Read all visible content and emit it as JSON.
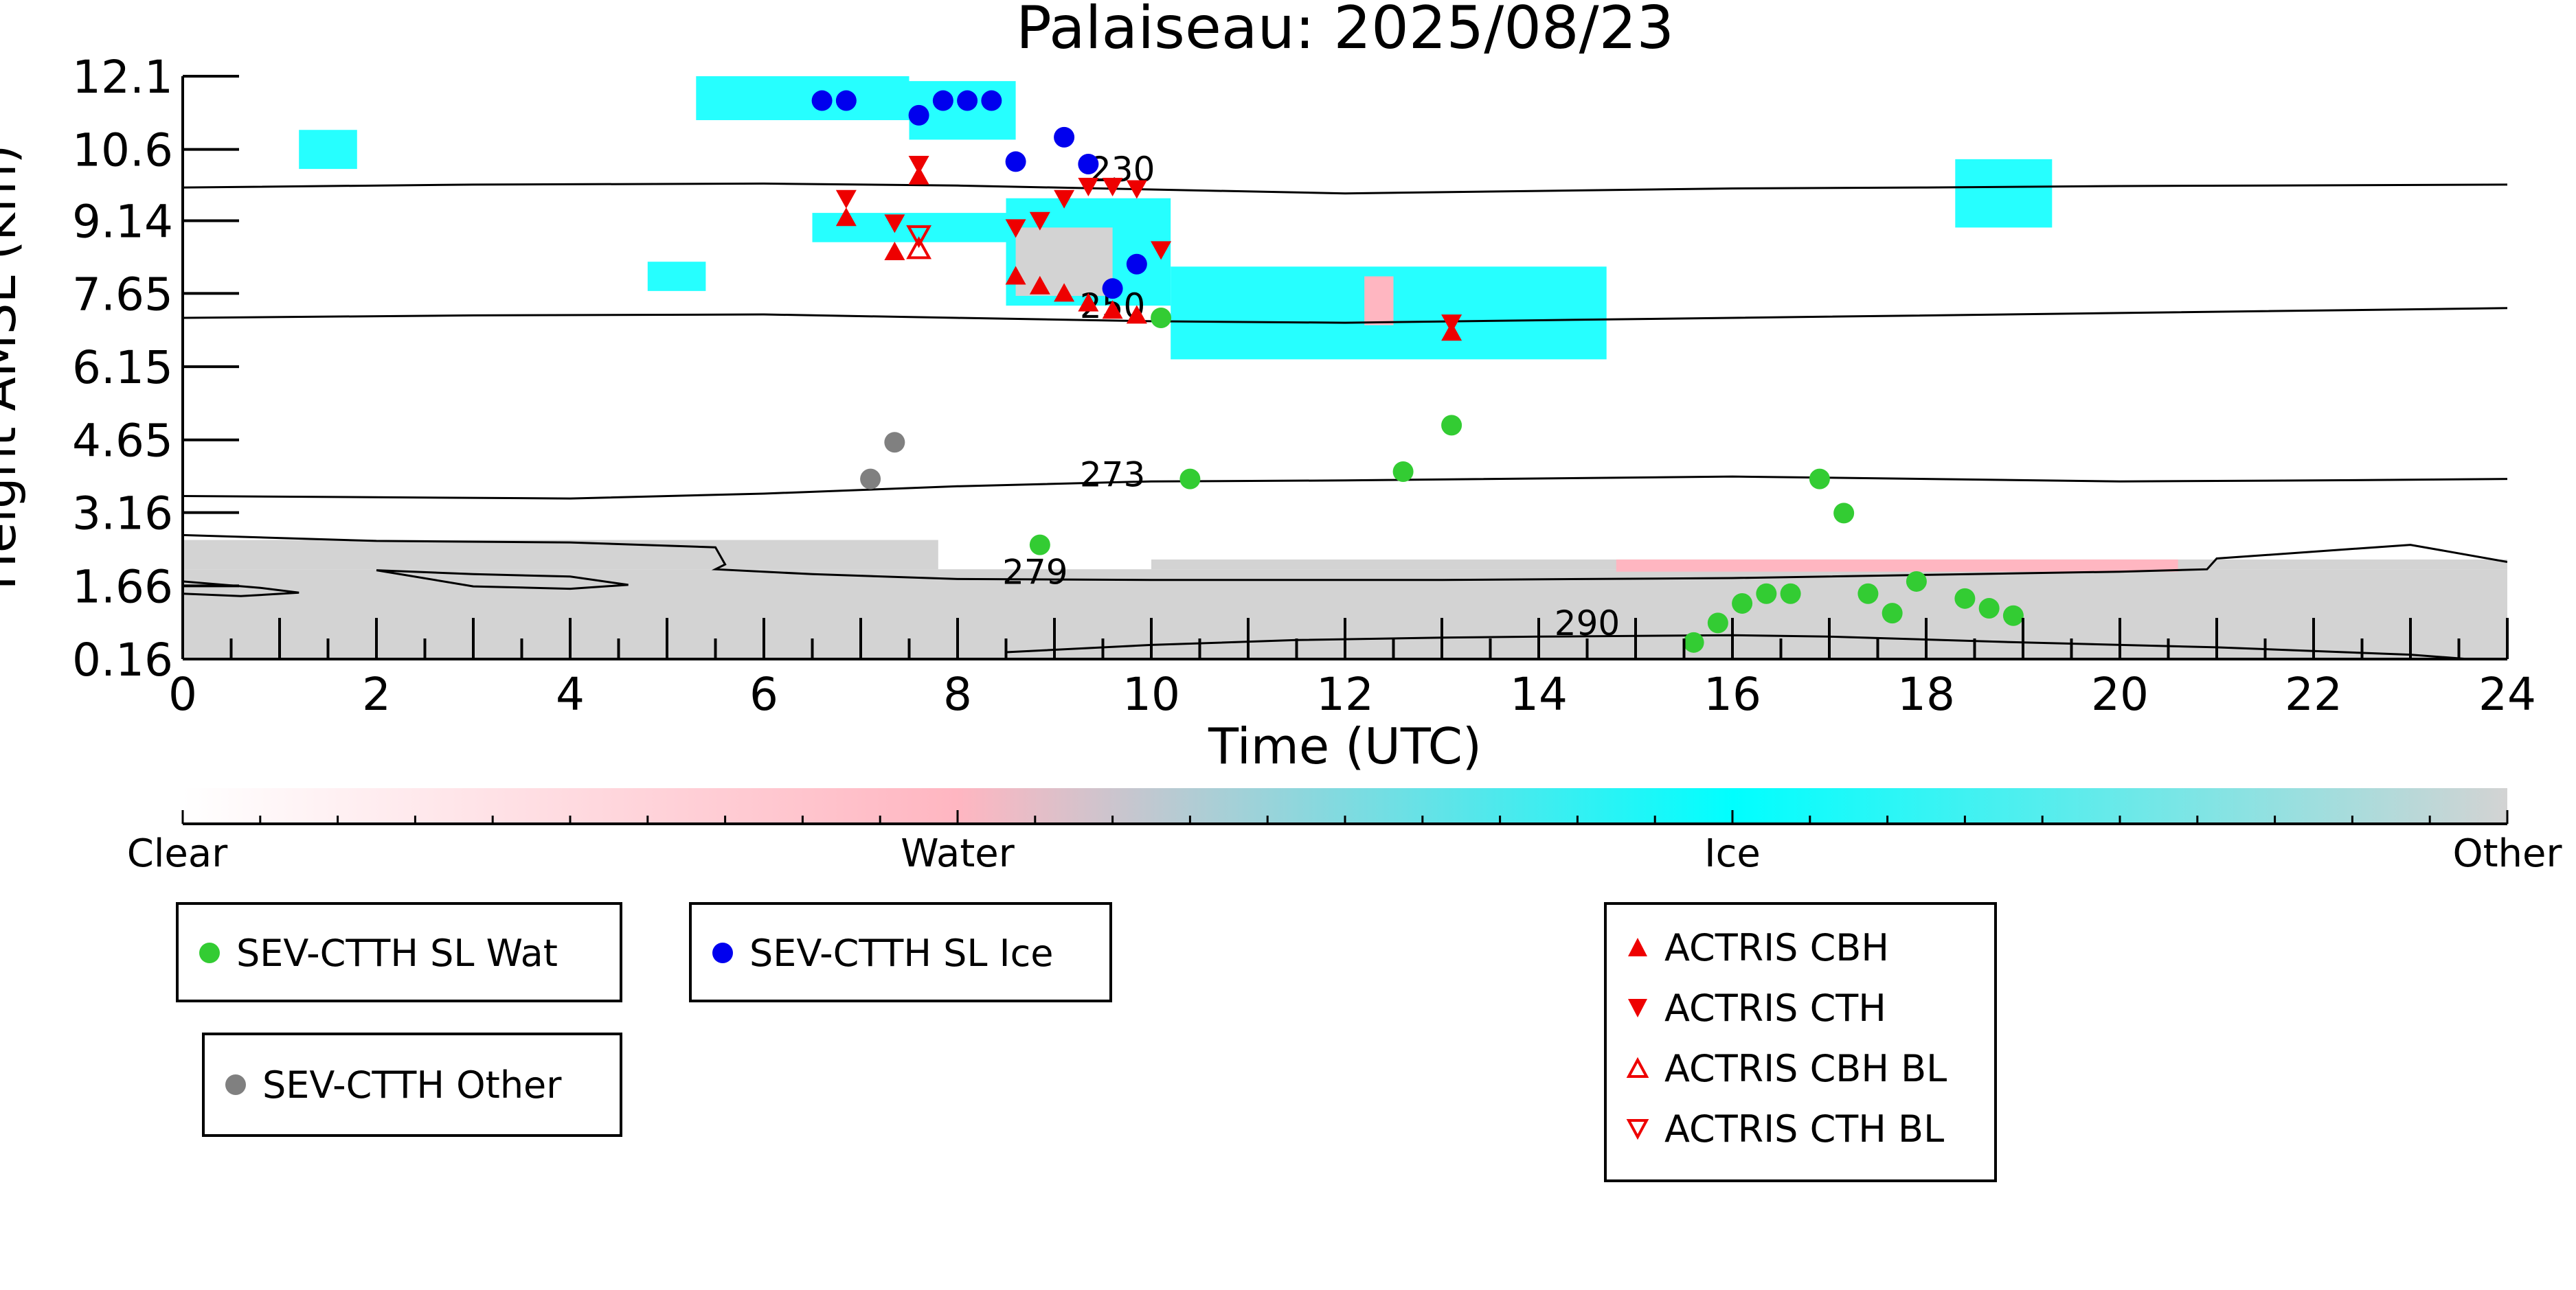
{
  "chart_data": {
    "type": "scatter",
    "title": "Palaiseau: 2025/08/23",
    "xlabel": "Time (UTC)",
    "ylabel": "Height AMSL (km)",
    "xlim": [
      0,
      24
    ],
    "ylim": [
      0.16,
      12.1
    ],
    "x_ticks": [
      "0",
      "2",
      "4",
      "6",
      "8",
      "10",
      "12",
      "14",
      "16",
      "18",
      "20",
      "22",
      "24"
    ],
    "y_ticks": [
      "0.16",
      "1.66",
      "3.16",
      "4.65",
      "6.15",
      "7.65",
      "9.14",
      "10.6",
      "12.1"
    ],
    "y_tick_values": [
      0.16,
      1.66,
      3.16,
      4.65,
      6.15,
      7.65,
      9.14,
      10.6,
      12.1
    ],
    "colorbar": {
      "labels": [
        "Clear",
        "Water",
        "Ice",
        "Other"
      ],
      "colors": [
        "#ffffff",
        "#ffb6c1",
        "#00ffff",
        "#d3d3d3"
      ]
    },
    "temperature_contours": [
      {
        "label": "230",
        "label_x": 9.7,
        "label_y": 9.95,
        "points": [
          [
            0,
            9.82
          ],
          [
            3,
            9.88
          ],
          [
            6,
            9.9
          ],
          [
            8,
            9.86
          ],
          [
            10,
            9.78
          ],
          [
            12,
            9.7
          ],
          [
            14,
            9.75
          ],
          [
            16,
            9.8
          ],
          [
            18,
            9.82
          ],
          [
            20,
            9.85
          ],
          [
            24,
            9.88
          ]
        ]
      },
      {
        "label": "250",
        "label_x": 9.6,
        "label_y": 7.15,
        "points": [
          [
            0,
            7.15
          ],
          [
            3,
            7.2
          ],
          [
            6,
            7.22
          ],
          [
            8,
            7.15
          ],
          [
            10,
            7.08
          ],
          [
            12,
            7.05
          ],
          [
            14,
            7.1
          ],
          [
            16,
            7.15
          ],
          [
            20,
            7.25
          ],
          [
            24,
            7.35
          ]
        ]
      },
      {
        "label": "273",
        "label_x": 9.6,
        "label_y": 3.7,
        "points": [
          [
            0,
            3.5
          ],
          [
            4,
            3.45
          ],
          [
            6,
            3.55
          ],
          [
            8,
            3.7
          ],
          [
            10,
            3.8
          ],
          [
            12,
            3.82
          ],
          [
            16,
            3.9
          ],
          [
            18,
            3.85
          ],
          [
            20,
            3.8
          ],
          [
            22,
            3.82
          ],
          [
            24,
            3.85
          ]
        ]
      },
      {
        "label": "279",
        "label_x": 8.8,
        "label_y": 1.7,
        "points": [
          [
            0,
            2.7
          ],
          [
            2,
            2.58
          ],
          [
            4,
            2.55
          ],
          [
            5.5,
            2.45
          ],
          [
            5.6,
            2.1
          ],
          [
            5.5,
            2.0
          ],
          [
            6.5,
            1.9
          ],
          [
            8,
            1.8
          ],
          [
            10,
            1.78
          ],
          [
            13,
            1.78
          ],
          [
            16,
            1.82
          ],
          [
            20,
            1.95
          ],
          [
            20.9,
            2.0
          ],
          [
            21,
            2.22
          ],
          [
            23,
            2.5
          ],
          [
            24,
            2.15
          ]
        ]
      },
      {
        "label": "",
        "label_x": 0,
        "label_y": 0,
        "points": [
          [
            2,
            1.98
          ],
          [
            3,
            1.9
          ],
          [
            4,
            1.85
          ],
          [
            4.6,
            1.68
          ],
          [
            4,
            1.6
          ],
          [
            3,
            1.65
          ],
          [
            2,
            1.98
          ]
        ]
      },
      {
        "label": "",
        "label_x": 0,
        "label_y": 0,
        "points": [
          [
            0,
            1.75
          ],
          [
            0.8,
            1.62
          ],
          [
            1.2,
            1.52
          ],
          [
            0.6,
            1.45
          ],
          [
            0,
            1.5
          ]
        ]
      },
      {
        "label": "290",
        "label_x": 14.5,
        "label_y": 0.65,
        "points": [
          [
            8.5,
            0.3
          ],
          [
            10,
            0.45
          ],
          [
            11.5,
            0.55
          ],
          [
            13,
            0.6
          ],
          [
            14,
            0.62
          ],
          [
            16,
            0.65
          ],
          [
            17,
            0.62
          ],
          [
            19,
            0.5
          ],
          [
            21,
            0.4
          ],
          [
            23,
            0.25
          ],
          [
            23.6,
            0.16
          ]
        ]
      }
    ],
    "series": [
      {
        "name": "SEV-CTTH SL Wat",
        "marker": "circle",
        "color": "#33cc33",
        "x": [
          8.85,
          10.1,
          10.4,
          12.6,
          13.1,
          15.6,
          15.85,
          16.1,
          16.35,
          16.6,
          16.9,
          17.15,
          17.4,
          17.65,
          17.9,
          18.4,
          18.65,
          18.9
        ],
        "y": [
          2.5,
          7.15,
          3.85,
          4.0,
          4.95,
          0.5,
          0.9,
          1.3,
          1.5,
          1.5,
          3.85,
          3.15,
          1.5,
          1.1,
          1.75,
          1.4,
          1.2,
          1.05
        ]
      },
      {
        "name": "SEV-CTTH SL Ice",
        "marker": "circle",
        "color": "#0000ee",
        "x": [
          6.6,
          6.85,
          7.6,
          7.85,
          8.1,
          8.35,
          8.6,
          9.1,
          9.35,
          9.6,
          9.85
        ],
        "y": [
          11.6,
          11.6,
          11.3,
          11.6,
          11.6,
          11.6,
          10.35,
          10.85,
          10.3,
          7.75,
          8.25
        ]
      },
      {
        "name": "SEV-CTTH Other",
        "marker": "circle",
        "color": "#808080",
        "x": [
          7.1,
          7.35
        ],
        "y": [
          3.85,
          4.6
        ]
      },
      {
        "name": "ACTRIS CBH",
        "marker": "triangle-up",
        "color": "#ee0000",
        "x": [
          6.85,
          7.35,
          7.6,
          8.6,
          8.85,
          9.1,
          9.35,
          9.6,
          9.85,
          13.1
        ],
        "y": [
          9.2,
          8.5,
          10.05,
          8.0,
          7.8,
          7.65,
          7.45,
          7.3,
          7.2,
          6.85
        ]
      },
      {
        "name": "ACTRIS CTH",
        "marker": "triangle-down",
        "color": "#ee0000",
        "x": [
          6.85,
          7.35,
          7.6,
          8.6,
          8.85,
          9.1,
          9.35,
          9.6,
          9.85,
          10.1,
          13.1
        ],
        "y": [
          9.6,
          9.1,
          10.3,
          9.0,
          9.15,
          9.6,
          9.85,
          9.85,
          9.8,
          8.55,
          7.05
        ]
      },
      {
        "name": "ACTRIS CBH BL",
        "marker": "triangle-up-open",
        "color": "#ee0000",
        "x": [
          7.6
        ],
        "y": [
          8.55
        ]
      },
      {
        "name": "ACTRIS CTH BL",
        "marker": "triangle-down-open",
        "color": "#ee0000",
        "x": [
          7.6
        ],
        "y": [
          8.85
        ]
      }
    ],
    "cloud_regions": [
      {
        "phase": "Other",
        "color": "#d3d3d3",
        "x0": 0,
        "x1": 24,
        "y0": 0.16,
        "y1": 2.0
      },
      {
        "phase": "Other",
        "color": "#d3d3d3",
        "x0": 0,
        "x1": 7.8,
        "y0": 2.0,
        "y1": 2.6
      },
      {
        "phase": "Other",
        "color": "#d3d3d3",
        "x0": 10,
        "x1": 24,
        "y0": 2.0,
        "y1": 2.2
      },
      {
        "phase": "Water",
        "color": "#ffb6c1",
        "x0": 14.8,
        "x1": 20.6,
        "y0": 1.95,
        "y1": 2.2
      },
      {
        "phase": "Ice",
        "color": "#00ffff",
        "x0": 8.5,
        "x1": 10.2,
        "y0": 7.4,
        "y1": 9.6
      },
      {
        "phase": "Ice",
        "color": "#00ffff",
        "x0": 10.2,
        "x1": 14.7,
        "y0": 6.3,
        "y1": 8.2
      },
      {
        "phase": "Ice",
        "color": "#00ffff",
        "x0": 6.5,
        "x1": 8.5,
        "y0": 8.7,
        "y1": 9.3
      },
      {
        "phase": "Ice",
        "color": "#00ffff",
        "x0": 5.3,
        "x1": 7.5,
        "y0": 11.2,
        "y1": 12.1
      },
      {
        "phase": "Ice",
        "color": "#00ffff",
        "x0": 7.5,
        "x1": 8.6,
        "y0": 10.8,
        "y1": 12.0
      },
      {
        "phase": "Ice",
        "color": "#00ffff",
        "x0": 4.8,
        "x1": 5.4,
        "y0": 7.7,
        "y1": 8.3
      },
      {
        "phase": "Ice",
        "color": "#00ffff",
        "x0": 1.2,
        "x1": 1.8,
        "y0": 10.2,
        "y1": 11.0
      },
      {
        "phase": "Ice",
        "color": "#00ffff",
        "x0": 18.3,
        "x1": 19.3,
        "y0": 9.0,
        "y1": 10.4
      },
      {
        "phase": "Other",
        "color": "#d3d3d3",
        "x0": 8.6,
        "x1": 9.6,
        "y0": 7.6,
        "y1": 9.0
      },
      {
        "phase": "Water",
        "color": "#ffb6c1",
        "x0": 12.2,
        "x1": 12.5,
        "y0": 7.0,
        "y1": 8.0
      }
    ]
  }
}
